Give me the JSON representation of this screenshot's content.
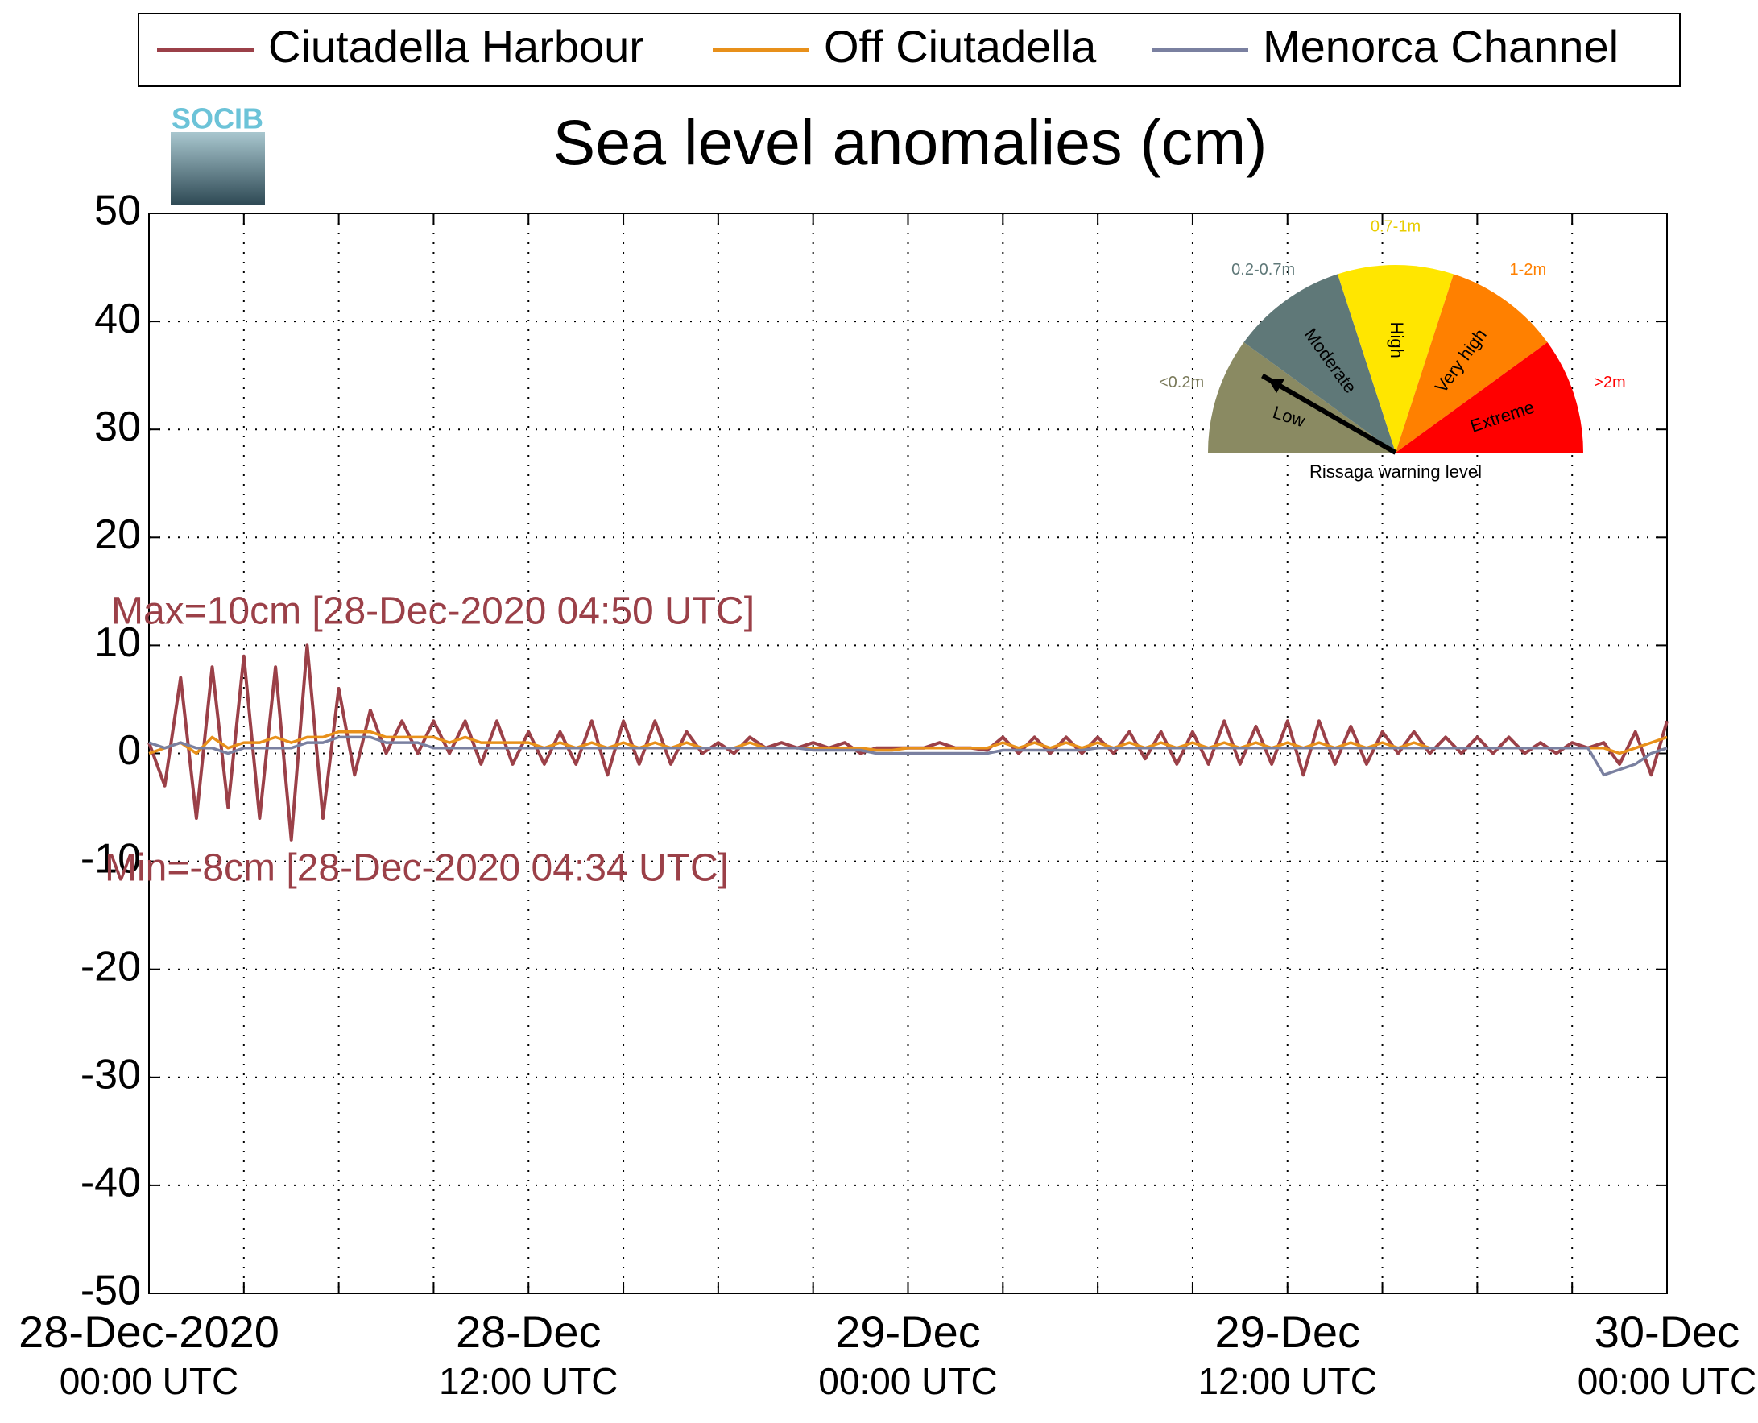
{
  "chart_data": {
    "type": "line",
    "title": "Sea level anomalies (cm)",
    "logo": "SOCIB",
    "x": [
      "2020-12-28 00:00",
      "2020-12-28 00:30",
      "2020-12-28 01:00",
      "2020-12-28 01:30",
      "2020-12-28 02:00",
      "2020-12-28 02:30",
      "2020-12-28 03:00",
      "2020-12-28 03:30",
      "2020-12-28 04:00",
      "2020-12-28 04:30",
      "2020-12-28 05:00",
      "2020-12-28 05:30",
      "2020-12-28 06:00",
      "2020-12-28 06:30",
      "2020-12-28 07:00",
      "2020-12-28 07:30",
      "2020-12-28 08:00",
      "2020-12-28 08:30",
      "2020-12-28 09:00",
      "2020-12-28 09:30",
      "2020-12-28 10:00",
      "2020-12-28 10:30",
      "2020-12-28 11:00",
      "2020-12-28 11:30",
      "2020-12-28 12:00",
      "2020-12-28 12:30",
      "2020-12-28 13:00",
      "2020-12-28 13:30",
      "2020-12-28 14:00",
      "2020-12-28 14:30",
      "2020-12-28 15:00",
      "2020-12-28 15:30",
      "2020-12-28 16:00",
      "2020-12-28 16:30",
      "2020-12-28 17:00",
      "2020-12-28 17:30",
      "2020-12-28 18:00",
      "2020-12-28 18:30",
      "2020-12-28 19:00",
      "2020-12-28 19:30",
      "2020-12-28 20:00",
      "2020-12-28 20:30",
      "2020-12-28 21:00",
      "2020-12-28 21:30",
      "2020-12-28 22:00",
      "2020-12-28 22:30",
      "2020-12-28 23:00",
      "2020-12-28 23:30",
      "2020-12-29 00:00",
      "2020-12-29 00:30",
      "2020-12-29 01:00",
      "2020-12-29 01:30",
      "2020-12-29 02:00",
      "2020-12-29 02:30",
      "2020-12-29 03:00",
      "2020-12-29 03:30",
      "2020-12-29 04:00",
      "2020-12-29 04:30",
      "2020-12-29 05:00",
      "2020-12-29 05:30",
      "2020-12-29 06:00",
      "2020-12-29 06:30",
      "2020-12-29 07:00",
      "2020-12-29 07:30",
      "2020-12-29 08:00",
      "2020-12-29 08:30",
      "2020-12-29 09:00",
      "2020-12-29 09:30",
      "2020-12-29 10:00",
      "2020-12-29 10:30",
      "2020-12-29 11:00",
      "2020-12-29 11:30",
      "2020-12-29 12:00",
      "2020-12-29 12:30",
      "2020-12-29 13:00",
      "2020-12-29 13:30",
      "2020-12-29 14:00",
      "2020-12-29 14:30",
      "2020-12-29 15:00",
      "2020-12-29 15:30",
      "2020-12-29 16:00",
      "2020-12-29 16:30",
      "2020-12-29 17:00",
      "2020-12-29 17:30",
      "2020-12-29 18:00",
      "2020-12-29 18:30",
      "2020-12-29 19:00",
      "2020-12-29 19:30",
      "2020-12-29 20:00",
      "2020-12-29 20:30",
      "2020-12-29 21:00",
      "2020-12-29 21:30",
      "2020-12-29 22:00",
      "2020-12-29 22:30",
      "2020-12-29 23:00",
      "2020-12-29 23:30",
      "2020-12-30 00:00"
    ],
    "series": [
      {
        "name": "Ciutadella Harbour",
        "color": "#9b4048",
        "values": [
          1,
          -3,
          7,
          -6,
          8,
          -5,
          9,
          -6,
          8,
          -8,
          10,
          -6,
          6,
          -2,
          4,
          0,
          3,
          0,
          3,
          0,
          3,
          -1,
          3,
          -1,
          2,
          -1,
          2,
          -1,
          3,
          -2,
          3,
          -1,
          3,
          -1,
          2,
          0,
          1,
          0,
          1.5,
          0.5,
          1,
          0.5,
          1,
          0.5,
          1,
          0,
          0.5,
          0.5,
          0.5,
          0.5,
          1,
          0.5,
          0.5,
          0.3,
          1.5,
          0,
          1.5,
          0,
          1.5,
          0,
          1.5,
          0,
          2,
          -0.5,
          2,
          -1,
          2,
          -1,
          3,
          -1,
          2.5,
          -1,
          3,
          -2,
          3,
          -1,
          2.5,
          -1,
          2,
          0,
          2,
          0,
          1.5,
          0,
          1.5,
          0,
          1.5,
          0,
          1,
          0,
          1,
          0.5,
          1,
          -1,
          2,
          -2,
          3
        ]
      },
      {
        "name": "Off Ciutadella",
        "color": "#e8901a",
        "values": [
          0,
          0.5,
          1,
          0,
          1.5,
          0.5,
          1,
          1,
          1.5,
          1,
          1.5,
          1.5,
          2,
          2,
          2,
          1.5,
          1.5,
          1.5,
          1.5,
          1,
          1.5,
          1,
          1,
          1,
          1,
          0.5,
          1,
          0.5,
          1,
          0.5,
          1,
          0.5,
          1,
          0.5,
          1,
          0.5,
          0.5,
          0.5,
          1,
          0.5,
          0.5,
          0.5,
          0.5,
          0.5,
          0.5,
          0.5,
          0.3,
          0.3,
          0.5,
          0.5,
          0.5,
          0.5,
          0.5,
          0.5,
          1,
          0.5,
          1,
          0.5,
          1,
          0.5,
          1,
          0.5,
          1,
          0.5,
          1,
          0.5,
          1,
          0.5,
          1,
          0.5,
          1,
          0.5,
          1,
          0.5,
          1,
          0.5,
          1,
          0.5,
          1,
          0.5,
          1,
          0.5,
          0.5,
          0.5,
          0.5,
          0.5,
          0.5,
          0.5,
          0.5,
          0.5,
          0.5,
          0.5,
          0.5,
          0,
          0.5,
          1,
          1.5
        ]
      },
      {
        "name": "Menorca Channel",
        "color": "#7a80a0",
        "values": [
          1,
          0.5,
          1,
          0.5,
          0.5,
          0,
          0.5,
          0.5,
          0.5,
          0.5,
          1,
          1,
          1.5,
          1.5,
          1.5,
          1,
          1,
          1,
          0.5,
          0.5,
          0.5,
          0.5,
          0.5,
          0.5,
          0.5,
          0.5,
          0.5,
          0.5,
          0.5,
          0.5,
          0.5,
          0.5,
          0.5,
          0.5,
          0.5,
          0.5,
          0.5,
          0.5,
          0.5,
          0.5,
          0.5,
          0.5,
          0.3,
          0.3,
          0.3,
          0.3,
          0,
          0,
          0,
          0,
          0,
          0,
          0,
          0,
          0.3,
          0.3,
          0.3,
          0.3,
          0.3,
          0.3,
          0.5,
          0.5,
          0.5,
          0.5,
          0.5,
          0.5,
          0.5,
          0.5,
          0.5,
          0.5,
          0.5,
          0.5,
          0.5,
          0.5,
          0.5,
          0.5,
          0.5,
          0.5,
          0.5,
          0.5,
          0.5,
          0.5,
          0.5,
          0.5,
          0.5,
          0.5,
          0.5,
          0.5,
          0.5,
          0.5,
          0.5,
          0.5,
          -2,
          -1.5,
          -1,
          0,
          0.5
        ]
      }
    ],
    "xlim": [
      "2020-12-28 00:00",
      "2020-12-30 00:00"
    ],
    "xticks": [
      {
        "value": "2020-12-28 00:00",
        "label": [
          "28-Dec-2020",
          "00:00 UTC"
        ]
      },
      {
        "value": "2020-12-28 12:00",
        "label": [
          "28-Dec",
          "12:00 UTC"
        ]
      },
      {
        "value": "2020-12-29 00:00",
        "label": [
          "29-Dec",
          "00:00 UTC"
        ]
      },
      {
        "value": "2020-12-29 12:00",
        "label": [
          "29-Dec",
          "12:00 UTC"
        ]
      },
      {
        "value": "2020-12-30 00:00",
        "label": [
          "30-Dec",
          "00:00 UTC"
        ]
      }
    ],
    "xminor_ticks": [
      "2020-12-28 03:00",
      "2020-12-28 06:00",
      "2020-12-28 09:00",
      "2020-12-28 15:00",
      "2020-12-28 18:00",
      "2020-12-28 21:00",
      "2020-12-29 03:00",
      "2020-12-29 06:00",
      "2020-12-29 09:00",
      "2020-12-29 15:00",
      "2020-12-29 18:00",
      "2020-12-29 21:00"
    ],
    "ylim": [
      -50,
      50
    ],
    "yticks": [
      -50,
      -40,
      -30,
      -20,
      -10,
      0,
      10,
      20,
      30,
      40,
      50
    ],
    "grid": true,
    "legend": "top",
    "annotations": [
      "Max=10cm [28-Dec-2020 04:50 UTC]",
      "Min=-8cm [28-Dec-2020 04:34 UTC]"
    ],
    "annotation_color": "#9b4048",
    "inset": {
      "caption": "Rissaga warning level",
      "levels": [
        {
          "name": "Low",
          "range": "<0.2m",
          "color": "#8a8a62",
          "label_color": "#7a7a5a"
        },
        {
          "name": "Moderate",
          "range": "0.2-0.7m",
          "color": "#5f7878",
          "label_color": "#5f7878"
        },
        {
          "name": "High",
          "range": "0.7-1m",
          "color": "#ffe600",
          "label_color": "#e8cc00"
        },
        {
          "name": "Very high",
          "range": "1-2m",
          "color": "#ff8000",
          "label_color": "#ff8000"
        },
        {
          "name": "Extreme",
          "range": ">2m",
          "color": "#ff0000",
          "label_color": "#ff0000"
        }
      ]
    }
  }
}
